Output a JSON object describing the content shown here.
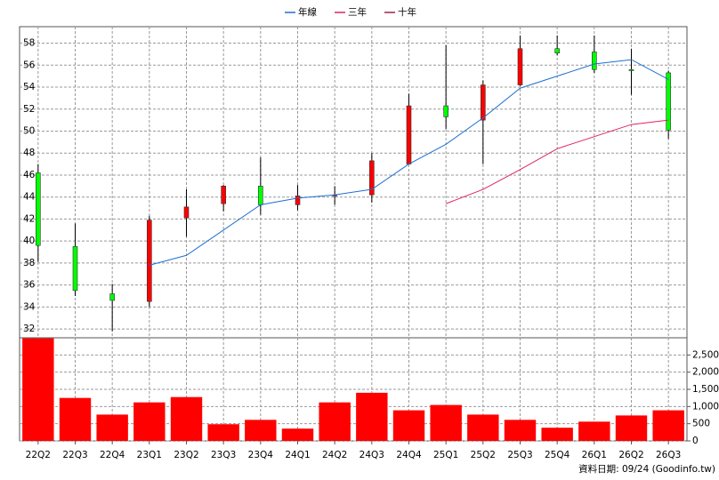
{
  "chart_data": {
    "type": "candlestick",
    "categories": [
      "22Q2",
      "22Q3",
      "22Q4",
      "23Q1",
      "23Q2",
      "23Q3",
      "23Q4",
      "24Q1",
      "24Q2",
      "24Q3",
      "24Q4",
      "25Q1",
      "25Q2",
      "25Q3",
      "25Q4",
      "26Q1",
      "26Q2",
      "26Q3"
    ],
    "open": [
      46.2,
      39.5,
      35.2,
      34.5,
      42.1,
      43.4,
      45.0,
      43.3,
      44.1,
      44.2,
      47.0,
      52.3,
      51.0,
      54.2,
      57.5,
      57.2,
      55.6,
      55.3
    ],
    "high": [
      47.0,
      41.6,
      36.1,
      42.3,
      44.7,
      45.1,
      47.6,
      45.1,
      45.0,
      48.0,
      53.4,
      57.8,
      54.6,
      58.7,
      58.7,
      58.7,
      57.5,
      55.5
    ],
    "low": [
      38.1,
      35.0,
      31.8,
      34.0,
      40.4,
      42.7,
      42.4,
      42.8,
      43.3,
      43.5,
      47.0,
      50.2,
      47.0,
      54.1,
      56.9,
      55.3,
      53.3,
      49.3
    ],
    "close": [
      39.6,
      35.5,
      34.6,
      41.9,
      43.1,
      45.0,
      43.3,
      44.1,
      44.2,
      47.3,
      52.3,
      51.3,
      54.2,
      57.5,
      57.1,
      55.6,
      55.5,
      50.1
    ],
    "up_color": "#ff0000",
    "down_color": "#00ff00",
    "lines": [
      {
        "name": "年線",
        "color": "#1e6fd0",
        "values": [
          null,
          null,
          null,
          37.8,
          38.7,
          41.0,
          43.3,
          43.9,
          44.2,
          44.7,
          47.0,
          48.8,
          51.2,
          53.9,
          55.0,
          56.1,
          56.5,
          54.7
        ]
      },
      {
        "name": "三年",
        "color": "#e0245e",
        "values": [
          null,
          null,
          null,
          null,
          null,
          null,
          null,
          null,
          null,
          null,
          null,
          43.4,
          44.7,
          46.5,
          48.4,
          49.5,
          50.6,
          51.0
        ]
      },
      {
        "name": "十年",
        "color": "#a0204a",
        "values": [
          null,
          null,
          null,
          null,
          null,
          null,
          null,
          null,
          null,
          null,
          null,
          null,
          null,
          null,
          null,
          null,
          null,
          null
        ]
      }
    ],
    "ylim": [
      31.2,
      59.5
    ],
    "yticks": [
      32,
      34,
      36,
      38,
      40,
      42,
      44,
      46,
      48,
      50,
      52,
      54,
      56,
      58
    ],
    "volume": {
      "color": "#ff0000",
      "values": [
        2985,
        1250,
        765,
        1120,
        1275,
        485,
        612,
        357,
        1120,
        1400,
        890,
        1045,
        765,
        612,
        383,
        560,
        740,
        890
      ],
      "ylim": [
        0,
        3000
      ],
      "yticks": [
        0,
        500,
        {
          "value": 1000,
          "label": "1,000"
        },
        {
          "value": 1500,
          "label": "1,500"
        },
        {
          "value": 2000,
          "label": "2,000"
        },
        {
          "value": 2500,
          "label": "2,500"
        }
      ]
    },
    "grid": true,
    "footer": "資料日期: 09/24 (Goodinfo.tw)"
  }
}
